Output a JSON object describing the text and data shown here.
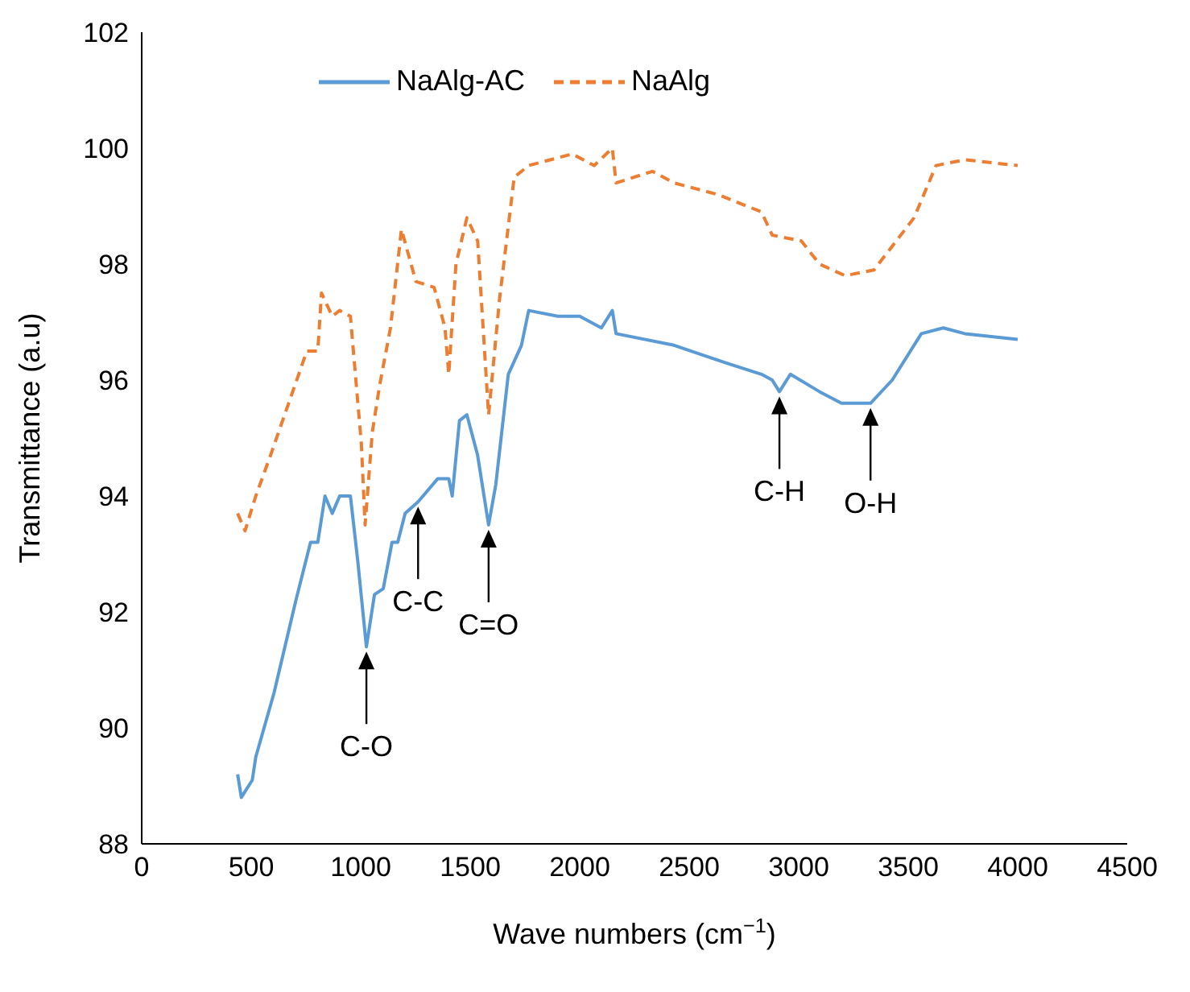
{
  "chart_data": {
    "type": "line",
    "xlabel": "Wave numbers (cm$^{−1}$)",
    "ylabel": "Transmittance (a.u)",
    "xlim": [
      0,
      4500
    ],
    "xticks": [
      0,
      500,
      1000,
      1500,
      2000,
      2500,
      3000,
      3500,
      4000,
      4500
    ],
    "ylim": [
      88,
      102
    ],
    "yticks": [
      88,
      90,
      92,
      94,
      96,
      98,
      100,
      102
    ],
    "grid": false,
    "legend": "top",
    "marker": "none",
    "series": [
      {
        "name": "NaAlg-AC",
        "color": "#5b9bd5",
        "line_style": "solid",
        "x": [
          438,
          455,
          505,
          521,
          604,
          704,
          771,
          804,
          837,
          870,
          904,
          953,
          986,
          1026,
          1063,
          1103,
          1143,
          1169,
          1203,
          1262,
          1352,
          1402,
          1418,
          1451,
          1485,
          1534,
          1584,
          1617,
          1674,
          1734,
          1767,
          1900,
          2000,
          2099,
          2149,
          2166,
          2431,
          2664,
          2830,
          2879,
          2912,
          2962,
          3095,
          3195,
          3328,
          3427,
          3560,
          3660,
          3759,
          4000
        ],
        "values": [
          89.2,
          88.8,
          89.1,
          89.5,
          90.6,
          92.2,
          93.2,
          93.2,
          94.0,
          93.7,
          94.0,
          94.0,
          92.9,
          91.4,
          92.3,
          92.4,
          93.2,
          93.2,
          93.7,
          93.9,
          94.3,
          94.3,
          94.0,
          95.3,
          95.4,
          94.7,
          93.5,
          94.2,
          96.1,
          96.6,
          97.2,
          97.1,
          97.1,
          96.9,
          97.2,
          96.8,
          96.6,
          96.3,
          96.1,
          96.0,
          95.8,
          96.1,
          95.8,
          95.6,
          95.6,
          96.0,
          96.8,
          96.9,
          96.8,
          96.7
        ]
      },
      {
        "name": "NaAlg",
        "color": "#ed7d31",
        "line_style": "dashed",
        "x": [
          438,
          472,
          521,
          588,
          671,
          754,
          804,
          821,
          870,
          904,
          953,
          1003,
          1020,
          1053,
          1086,
          1136,
          1186,
          1252,
          1335,
          1385,
          1402,
          1435,
          1485,
          1534,
          1584,
          1634,
          1701,
          1767,
          1966,
          2066,
          2149,
          2166,
          2332,
          2431,
          2631,
          2830,
          2879,
          3012,
          3095,
          3212,
          3344,
          3527,
          3627,
          3759,
          4000
        ],
        "values": [
          93.7,
          93.4,
          94.0,
          94.7,
          95.6,
          96.5,
          96.5,
          97.5,
          97.1,
          97.2,
          97.1,
          94.9,
          93.5,
          95.1,
          95.9,
          96.9,
          98.6,
          97.7,
          97.6,
          96.9,
          96.1,
          98.0,
          98.8,
          98.4,
          95.4,
          97.4,
          99.5,
          99.7,
          99.9,
          99.7,
          100.0,
          99.4,
          99.6,
          99.4,
          99.2,
          98.9,
          98.5,
          98.4,
          98.0,
          97.8,
          97.9,
          98.8,
          99.7,
          99.8,
          99.7
        ]
      }
    ],
    "annotations": [
      {
        "text": "C-O",
        "x": 1026,
        "y": 91.4
      },
      {
        "text": "C-C",
        "x": 1262,
        "y": 93.9
      },
      {
        "text": "C=O",
        "x": 1584,
        "y": 93.5
      },
      {
        "text": "C-H",
        "x": 2912,
        "y": 95.8
      },
      {
        "text": "O-H",
        "x": 3328,
        "y": 95.6
      }
    ]
  }
}
